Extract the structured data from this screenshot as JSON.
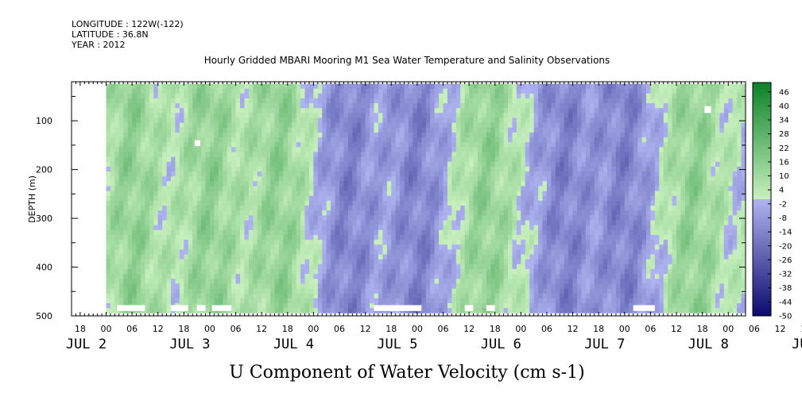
{
  "header": {
    "longitude": "LONGITUDE : 122W(-122)",
    "latitude": "LATITUDE : 36.8N",
    "year": "YEAR : 2012"
  },
  "colors": {
    "positive": "#22b03a",
    "negative": "#7070e0",
    "background_neutral": "#c8f0c0",
    "missing": "#ffffff"
  },
  "chart_data": {
    "type": "heatmap",
    "title": "Hourly Gridded MBARI Mooring M1 Sea Water Temperature and Salinity Observations",
    "xlabel": "U Component of Water Velocity (cm s-1)",
    "ylabel": "DEPTH (m)",
    "ylim": [
      500,
      20
    ],
    "y_ticks": [
      100,
      200,
      300,
      400,
      500
    ],
    "y_tick_labels": [
      "100",
      "200",
      "300",
      "400",
      "500"
    ],
    "x_range_hours": [
      -8,
      148
    ],
    "x_hour_labels": [
      "18",
      "00",
      "06",
      "12",
      "18",
      "00",
      "06",
      "12",
      "18",
      "00",
      "06",
      "12",
      "18",
      "00",
      "06",
      "12",
      "18",
      "00",
      "06",
      "12",
      "18",
      "00",
      "06",
      "12",
      "18",
      "00",
      "06",
      "12",
      "18",
      "00",
      "06",
      "12"
    ],
    "day_labels": [
      "JUL 2",
      "JUL 3",
      "JUL 4",
      "JUL 5",
      "JUL 6",
      "JUL 7",
      "JUL 8",
      "JUL 9"
    ],
    "colorbar": {
      "levels": [
        "46",
        "40",
        "34",
        "28",
        "22",
        "16",
        "10",
        "4",
        "-2",
        "-8",
        "-14",
        "-20",
        "-26",
        "-32",
        "-38",
        "-44",
        "-50"
      ],
      "range": [
        -50,
        50
      ]
    },
    "field_pattern": {
      "note": "Alternating bands of positive (green) and negative (blue) velocity through the water column",
      "band_centers_hours": [
        6,
        24,
        40,
        56,
        72,
        88,
        106,
        120,
        136
      ],
      "band_signs": [
        1,
        1,
        1,
        -1,
        -1,
        1,
        -1,
        -1,
        1
      ]
    }
  }
}
